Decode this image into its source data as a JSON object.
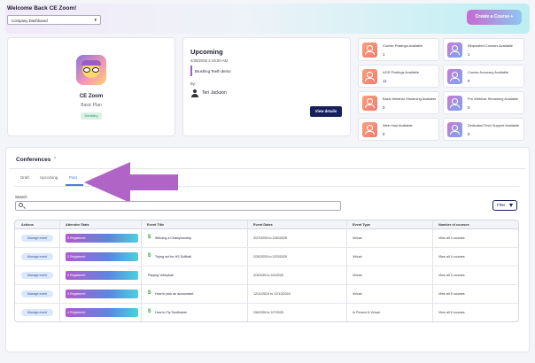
{
  "header": {
    "welcome": "Welcome Back CE Zoom!",
    "dashboard_select": "Company Dashboard",
    "create_button": "Create a Course +"
  },
  "profile": {
    "name": "CE Zoom",
    "plan": "Basic Plan",
    "badge": "Dentistry"
  },
  "upcoming": {
    "title": "Upcoming",
    "datetime": "4/30/2025 2:19:00 AM",
    "event": "Brushing Teeth demo",
    "by_label": "By:",
    "host": "Teri Jackson",
    "view_button": "View details"
  },
  "stats": [
    {
      "label": "Course Postings Available",
      "value": "1",
      "color": "orange"
    },
    {
      "label": "Requested Courses Available",
      "value": "1",
      "color": "purple"
    },
    {
      "label": "AGD Postings Available",
      "value": "11",
      "color": "orange"
    },
    {
      "label": "Course Accuracy Available",
      "value": "0",
      "color": "purple"
    },
    {
      "label": "Basic Webinar Streaming Available",
      "value": "0",
      "color": "orange"
    },
    {
      "label": "Pro Webinar Streaming Available",
      "value": "0",
      "color": "purple"
    },
    {
      "label": "Web Host Available",
      "value": "0",
      "color": "orange"
    },
    {
      "label": "Dedicated Tech Support Available",
      "value": "0",
      "color": "purple"
    }
  ],
  "conferences": {
    "title": "Conferences",
    "tabs": [
      "Draft",
      "Upcoming",
      "Past"
    ],
    "active_tab": "Past",
    "search_label": "Search",
    "filter_button": "Filter",
    "columns": [
      "Actions",
      "Attendee Stats",
      "Event Title",
      "Event Dates",
      "Event Type",
      "Number of courses"
    ],
    "rows": [
      {
        "action": "Manage event",
        "stats": "5 Registered",
        "title": "Winning a Championship",
        "paid": true,
        "dates": "3/27/2025 to 3/30/2025",
        "type": "Virtual",
        "courses": "View all 4 courses"
      },
      {
        "action": "Manage event",
        "stats": "2 Registered",
        "title": "Trying out for HS Softball",
        "paid": true,
        "dates": "2/20/2025 to 2/23/2025",
        "type": "Virtual",
        "courses": "View all 4 courses"
      },
      {
        "action": "Manage event",
        "stats": "0 Registered",
        "title": "Playing Volleyball",
        "paid": false,
        "dates": "2/3/2025 to 2/4/2025",
        "type": "Virtual",
        "courses": "View all 3 courses"
      },
      {
        "action": "Manage event",
        "stats": "4 Registered",
        "title": "How to pick an accountant",
        "paid": true,
        "dates": "12/11/2024 to 12/13/2024",
        "type": "Virtual",
        "courses": "View all 5 courses"
      },
      {
        "action": "Manage event",
        "stats": "4 Registered",
        "title": "How to Fly Southwest",
        "paid": true,
        "dates": "2/6/2025 to 2/7/2025",
        "type": "In Person & Virtual",
        "courses": "View all 6 courses"
      }
    ]
  },
  "colors": {
    "accent": "#a05dc8",
    "navy": "#16205c",
    "annotation_arrow": "#b065c6"
  }
}
